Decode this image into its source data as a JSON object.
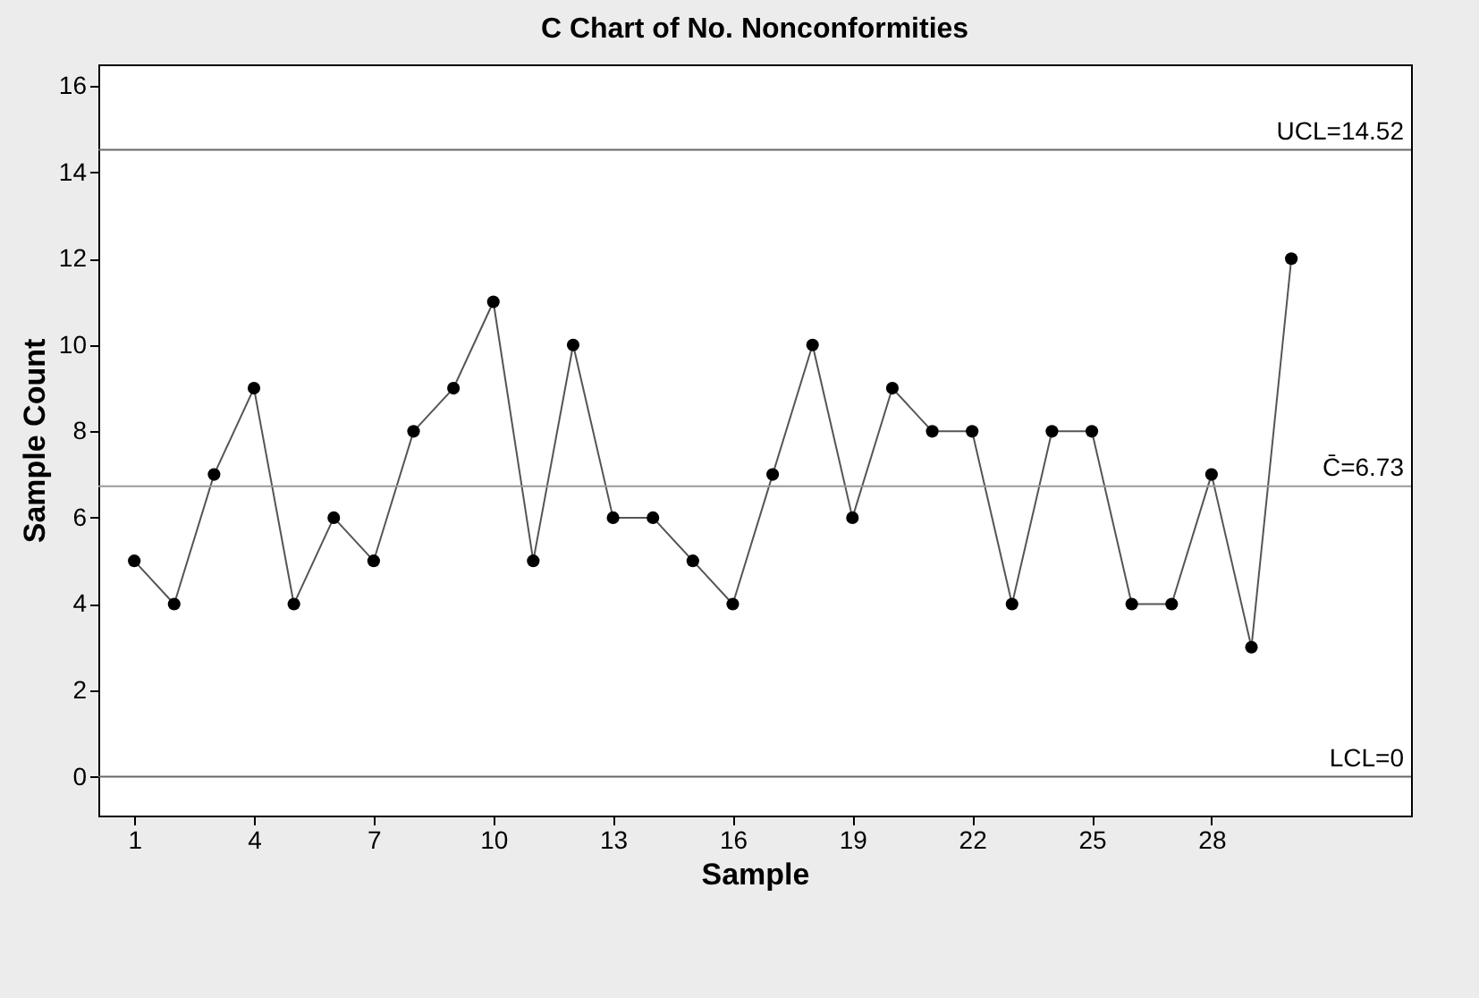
{
  "chart_data": {
    "type": "line",
    "title": "C Chart of No. Nonconformities",
    "xlabel": "Sample",
    "ylabel": "Sample Count",
    "x": [
      1,
      2,
      3,
      4,
      5,
      6,
      7,
      8,
      9,
      10,
      11,
      12,
      13,
      14,
      15,
      16,
      17,
      18,
      19,
      20,
      21,
      22,
      23,
      24,
      25,
      26,
      27,
      28,
      29,
      30
    ],
    "series": [
      {
        "color": "#555555",
        "values": [
          5,
          4,
          7,
          9,
          4,
          6,
          5,
          8,
          9,
          11,
          5,
          10,
          6,
          6,
          5,
          4,
          7,
          10,
          6,
          9,
          8,
          8,
          4,
          8,
          8,
          4,
          4,
          7,
          3,
          12
        ]
      }
    ],
    "marker": "circle",
    "line_style": "solid",
    "grid": false,
    "xlim": [
      0.1,
      33
    ],
    "xticks": [
      1,
      4,
      7,
      10,
      13,
      16,
      19,
      22,
      25,
      28
    ],
    "ylim": [
      -0.9,
      16.5
    ],
    "yticks": [
      0,
      2,
      4,
      6,
      8,
      10,
      12,
      14,
      16
    ],
    "ref_lines": [
      {
        "axis": "y",
        "value": 14.52,
        "label": "UCL=14.52",
        "color": "#666666"
      },
      {
        "axis": "y",
        "value": 6.73,
        "label": "C̄=6.73",
        "color": "#999999"
      },
      {
        "axis": "y",
        "value": 0,
        "label": "LCL=0",
        "color": "#666666"
      }
    ]
  }
}
